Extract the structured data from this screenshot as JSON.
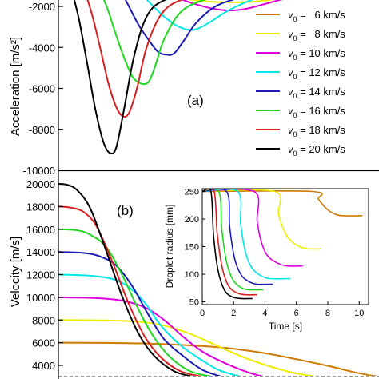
{
  "chart_data": [
    {
      "panel_label": "(a)",
      "type": "line",
      "ylabel": "Acceleration [m/s²]",
      "ylim": [
        -10000,
        -1400
      ],
      "xlim": [
        0,
        10
      ],
      "yticks": [
        -10000,
        -8000,
        -6000,
        -4000,
        -2000
      ],
      "ytick_labels": [
        "-10000",
        "-8000",
        "-6000",
        "-4000",
        "-2000"
      ],
      "legend_position": "right",
      "series": [
        {
          "name": "v0 = 6 km/s",
          "v0": "6",
          "color": "#cc7a00",
          "x": [
            4.6,
            5.4,
            6.4,
            7.4,
            8.6,
            10
          ],
          "y": [
            -1400,
            -1450,
            -1500,
            -1500,
            -1450,
            -1400
          ]
        },
        {
          "name": "v0 = 8 km/s",
          "v0": "8",
          "color": "#eeee00",
          "x": [
            3.0,
            3.8,
            4.6,
            5.4,
            6.2,
            7.0,
            8.2
          ],
          "y": [
            -1400,
            -1600,
            -1750,
            -1800,
            -1750,
            -1600,
            -1400
          ]
        },
        {
          "name": "v0 = 10 km/s",
          "v0": "10",
          "color": "#e000e0",
          "x": [
            3.4,
            4.1,
            4.8,
            5.4,
            5.9,
            6.4,
            7.0,
            7.8
          ],
          "y": [
            -1400,
            -1800,
            -2100,
            -2200,
            -2100,
            -1900,
            -1650,
            -1400
          ]
        },
        {
          "name": "v0 = 12 km/s",
          "v0": "12",
          "color": "#00e8e8",
          "x": [
            2.6,
            2.9,
            3.3,
            3.7,
            4.1,
            4.4,
            4.8,
            5.3,
            6.0,
            6.6
          ],
          "y": [
            -1400,
            -1900,
            -2500,
            -2950,
            -3150,
            -3050,
            -2700,
            -2200,
            -1700,
            -1400
          ]
        },
        {
          "name": "v0 = 14 km/s",
          "v0": "14",
          "color": "#1a1ab8",
          "x": [
            2.0,
            2.2,
            2.5,
            2.8,
            3.1,
            3.35,
            3.6,
            3.9,
            4.3,
            4.9,
            5.6,
            6.2
          ],
          "y": [
            -1400,
            -2000,
            -2900,
            -3600,
            -4200,
            -4350,
            -4300,
            -3700,
            -2800,
            -2000,
            -1600,
            -1400
          ]
        },
        {
          "name": "v0 = 16 km/s",
          "v0": "16",
          "color": "#1ed81e",
          "x": [
            1.35,
            1.55,
            1.8,
            2.05,
            2.3,
            2.55,
            2.8,
            3.0,
            3.3,
            3.8,
            4.5,
            5.5
          ],
          "y": [
            -1400,
            -2200,
            -3400,
            -4500,
            -5400,
            -5750,
            -5700,
            -5000,
            -3600,
            -2300,
            -1700,
            -1400
          ]
        },
        {
          "name": "v0 = 18 km/s",
          "v0": "18",
          "color": "#d81e1e",
          "x": [
            0.85,
            1.05,
            1.3,
            1.55,
            1.8,
            2.0,
            2.2,
            2.45,
            2.75,
            3.2,
            3.8,
            4.8
          ],
          "y": [
            -1400,
            -2400,
            -4000,
            -5700,
            -6900,
            -7350,
            -7200,
            -6000,
            -4000,
            -2400,
            -1700,
            -1400
          ]
        },
        {
          "name": "v0 = 20 km/s",
          "v0": "20",
          "color": "#000000",
          "x": [
            0.45,
            0.65,
            0.9,
            1.15,
            1.4,
            1.6,
            1.8,
            2.05,
            2.35,
            2.75,
            3.3,
            4.3
          ],
          "y": [
            -1400,
            -2700,
            -4800,
            -7000,
            -8600,
            -9150,
            -8900,
            -7000,
            -4500,
            -2500,
            -1700,
            -1400
          ]
        }
      ]
    },
    {
      "panel_label": "(b)",
      "type": "line",
      "ylabel": "Velocity [m/s]",
      "ylim": [
        3000,
        20500
      ],
      "xlim": [
        0,
        10
      ],
      "yticks": [
        4000,
        6000,
        8000,
        10000,
        12000,
        14000,
        16000,
        18000,
        20000
      ],
      "ytick_labels": [
        "4000",
        "6000",
        "8000",
        "10000",
        "12000",
        "14000",
        "16000",
        "18000",
        "20000"
      ],
      "reference_line": 3000,
      "series": [
        {
          "v0": "6",
          "color": "#cc7a00",
          "x": [
            0,
            1.5,
            3.0,
            4.5,
            5.5,
            6.5,
            7.5,
            8.5,
            9.3,
            10
          ],
          "y": [
            6000,
            5980,
            5900,
            5700,
            5450,
            5050,
            4500,
            3900,
            3350,
            3000
          ]
        },
        {
          "v0": "8",
          "color": "#eeee00",
          "x": [
            0,
            1.5,
            2.5,
            3.3,
            4.1,
            4.9,
            5.7,
            6.5,
            7.4,
            8.1
          ],
          "y": [
            8000,
            7960,
            7850,
            7500,
            6800,
            5800,
            4800,
            4000,
            3300,
            3000
          ]
        },
        {
          "v0": "10",
          "color": "#e000e0",
          "x": [
            0,
            1.2,
            2.0,
            2.7,
            3.3,
            3.9,
            4.5,
            5.2,
            5.9,
            6.4
          ],
          "y": [
            10000,
            9930,
            9700,
            9100,
            8000,
            6500,
            5200,
            4200,
            3400,
            3000
          ]
        },
        {
          "v0": "12",
          "color": "#00e8e8",
          "x": [
            0,
            1.0,
            1.7,
            2.2,
            2.7,
            3.2,
            3.8,
            4.4,
            5.0,
            5.7
          ],
          "y": [
            12000,
            11900,
            11600,
            10900,
            9500,
            7500,
            5800,
            4600,
            3600,
            3000
          ]
        },
        {
          "v0": "14",
          "color": "#1a1ab8",
          "x": [
            0,
            0.8,
            1.3,
            1.8,
            2.3,
            2.8,
            3.3,
            3.9,
            4.5,
            5.1
          ],
          "y": [
            14000,
            13900,
            13600,
            12800,
            11000,
            8500,
            6300,
            4800,
            3600,
            3000
          ]
        },
        {
          "v0": "16",
          "color": "#1ed81e",
          "x": [
            0,
            0.6,
            1.0,
            1.5,
            2.0,
            2.5,
            3.0,
            3.5,
            4.1,
            4.8
          ],
          "y": [
            16000,
            15900,
            15500,
            14400,
            11900,
            8900,
            6400,
            4700,
            3500,
            3000
          ]
        },
        {
          "v0": "18",
          "color": "#d81e1e",
          "x": [
            0,
            0.4,
            0.8,
            1.2,
            1.7,
            2.2,
            2.7,
            3.2,
            3.8,
            4.5
          ],
          "y": [
            18000,
            17900,
            17500,
            16200,
            13000,
            9400,
            6500,
            4700,
            3500,
            3000
          ]
        },
        {
          "v0": "20",
          "color": "#000000",
          "x": [
            0,
            0.3,
            0.6,
            1.0,
            1.5,
            2.0,
            2.5,
            3.0,
            3.6,
            4.2
          ],
          "y": [
            20000,
            19900,
            19400,
            17800,
            14000,
            10000,
            6800,
            4800,
            3500,
            3000
          ]
        }
      ]
    },
    {
      "panel_label": "inset",
      "type": "line",
      "xlabel": "Time [s]",
      "ylabel": "Droplet radius [mm]",
      "xlim": [
        0,
        10.6
      ],
      "ylim": [
        45,
        255
      ],
      "xticks": [
        0,
        2,
        4,
        6,
        8,
        10
      ],
      "xtick_labels": [
        "0",
        "2",
        "4",
        "6",
        "8",
        "10"
      ],
      "yticks": [
        50,
        100,
        150,
        200,
        250
      ],
      "ytick_labels": [
        "50",
        "100",
        "150",
        "200",
        "250"
      ],
      "series": [
        {
          "v0": "6",
          "color": "#cc7a00",
          "x": [
            0,
            7.0,
            7.4,
            7.8,
            8.3,
            8.9,
            10.2
          ],
          "y": [
            250,
            250,
            236,
            222,
            211,
            206,
            206
          ]
        },
        {
          "v0": "8",
          "color": "#eeee00",
          "x": [
            0,
            4.6,
            4.85,
            5.2,
            5.6,
            6.2,
            6.8,
            7.6
          ],
          "y": [
            250,
            250,
            210,
            180,
            162,
            150,
            146,
            146
          ]
        },
        {
          "v0": "10",
          "color": "#e000e0",
          "x": [
            0,
            3.3,
            3.5,
            3.8,
            4.2,
            4.8,
            5.4,
            6.4
          ],
          "y": [
            250,
            250,
            195,
            155,
            132,
            120,
            115,
            115
          ]
        },
        {
          "v0": "12",
          "color": "#00e8e8",
          "x": [
            0,
            2.25,
            2.45,
            2.75,
            3.15,
            3.7,
            4.3,
            5.6
          ],
          "y": [
            250,
            250,
            190,
            140,
            112,
            98,
            92,
            92
          ]
        },
        {
          "v0": "14",
          "color": "#1a1ab8",
          "x": [
            0,
            1.55,
            1.75,
            2.05,
            2.45,
            2.95,
            3.5,
            4.5
          ],
          "y": [
            250,
            250,
            185,
            130,
            100,
            87,
            82,
            82
          ]
        },
        {
          "v0": "16",
          "color": "#1ed81e",
          "x": [
            0,
            1.05,
            1.25,
            1.55,
            1.95,
            2.45,
            3.0,
            3.9
          ],
          "y": [
            250,
            250,
            180,
            122,
            90,
            76,
            72,
            72
          ]
        },
        {
          "v0": "18",
          "color": "#d81e1e",
          "x": [
            0,
            0.75,
            0.95,
            1.25,
            1.65,
            2.15,
            2.7,
            3.5
          ],
          "y": [
            250,
            250,
            175,
            115,
            80,
            67,
            63,
            63
          ]
        },
        {
          "v0": "20",
          "color": "#000000",
          "x": [
            0,
            0.55,
            0.72,
            1.0,
            1.4,
            1.9,
            2.5,
            3.2
          ],
          "y": [
            250,
            250,
            170,
            108,
            72,
            59,
            56,
            56
          ]
        }
      ]
    }
  ]
}
